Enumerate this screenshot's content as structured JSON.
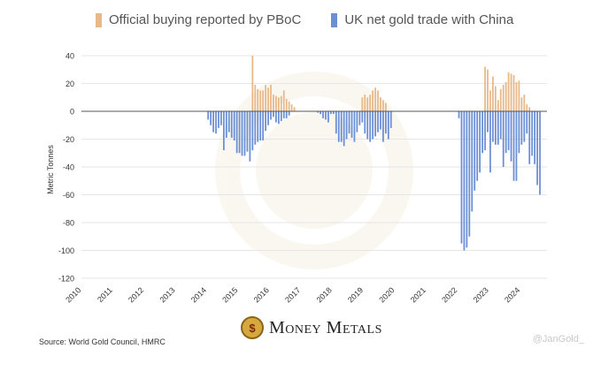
{
  "chart_data": {
    "type": "bar",
    "ylabel": "Metric Tonnes",
    "ylim": [
      -120,
      40
    ],
    "yticks": [
      40,
      20,
      0,
      -20,
      -40,
      -60,
      -80,
      -100,
      -120
    ],
    "xlim": [
      2010,
      2024.85
    ],
    "xticks": [
      "2010",
      "2011",
      "2012",
      "2013",
      "2014",
      "2015",
      "2016",
      "2017",
      "2018",
      "2019",
      "2020",
      "2021",
      "2022",
      "2023",
      "2024"
    ],
    "grid": true,
    "legend_position": "top",
    "series": [
      {
        "name": "Official buying reported by PBoC",
        "color": "#e8b888",
        "x": [
          "2015-06",
          "2015-07",
          "2015-08",
          "2015-09",
          "2015-10",
          "2015-11",
          "2015-12",
          "2016-01",
          "2016-02",
          "2016-03",
          "2016-04",
          "2016-05",
          "2016-06",
          "2016-07",
          "2016-08",
          "2016-09",
          "2016-10",
          "2018-12",
          "2019-01",
          "2019-02",
          "2019-03",
          "2019-04",
          "2019-05",
          "2019-06",
          "2019-07",
          "2019-08",
          "2019-09",
          "2022-11",
          "2022-12",
          "2023-01",
          "2023-02",
          "2023-03",
          "2023-04",
          "2023-05",
          "2023-06",
          "2023-07",
          "2023-08",
          "2023-09",
          "2023-10",
          "2023-11",
          "2023-12",
          "2024-01",
          "2024-02",
          "2024-03",
          "2024-04"
        ],
        "values": [
          40,
          19,
          16,
          15,
          15,
          19,
          17,
          19,
          12,
          11,
          10,
          11,
          15,
          9,
          7,
          5,
          3,
          10,
          12,
          10,
          12,
          15,
          17,
          15,
          10,
          8,
          6,
          32,
          30,
          15,
          25,
          18,
          8,
          16,
          19,
          21,
          28,
          27,
          26,
          21,
          22,
          10,
          12,
          5,
          3
        ]
      },
      {
        "name": "UK net gold trade with China",
        "color": "#6b8fd4",
        "x": [
          "2014-01",
          "2014-02",
          "2014-03",
          "2014-04",
          "2014-05",
          "2014-06",
          "2014-07",
          "2014-08",
          "2014-09",
          "2014-10",
          "2014-11",
          "2014-12",
          "2015-01",
          "2015-02",
          "2015-03",
          "2015-04",
          "2015-05",
          "2015-06",
          "2015-07",
          "2015-08",
          "2015-09",
          "2015-10",
          "2015-11",
          "2015-12",
          "2016-01",
          "2016-02",
          "2016-03",
          "2016-04",
          "2016-05",
          "2016-06",
          "2016-07",
          "2016-08",
          "2017-07",
          "2017-08",
          "2017-09",
          "2017-10",
          "2017-11",
          "2017-12",
          "2018-01",
          "2018-02",
          "2018-03",
          "2018-04",
          "2018-05",
          "2018-06",
          "2018-07",
          "2018-08",
          "2018-09",
          "2018-10",
          "2018-11",
          "2018-12",
          "2019-01",
          "2019-02",
          "2019-03",
          "2019-04",
          "2019-05",
          "2019-06",
          "2019-07",
          "2019-08",
          "2019-09",
          "2019-10",
          "2019-11",
          "2022-01",
          "2022-02",
          "2022-03",
          "2022-04",
          "2022-05",
          "2022-06",
          "2022-07",
          "2022-08",
          "2022-09",
          "2022-10",
          "2022-11",
          "2022-12",
          "2023-01",
          "2023-02",
          "2023-03",
          "2023-04",
          "2023-05",
          "2023-06",
          "2023-07",
          "2023-08",
          "2023-09",
          "2023-10",
          "2023-11",
          "2023-12",
          "2024-01",
          "2024-02",
          "2024-03",
          "2024-04",
          "2024-05",
          "2024-06",
          "2024-07",
          "2024-08"
        ],
        "values": [
          -6,
          -10,
          -15,
          -16,
          -12,
          -10,
          -28,
          -19,
          -15,
          -19,
          -21,
          -30,
          -30,
          -32,
          -32,
          -29,
          -36,
          -28,
          -24,
          -22,
          -21,
          -21,
          -14,
          -10,
          -6,
          -4,
          -8,
          -9,
          -7,
          -5,
          -5,
          -3,
          -1,
          -2,
          -5,
          -6,
          -8,
          -2,
          -2,
          -16,
          -22,
          -22,
          -25,
          -20,
          -16,
          -19,
          -22,
          -15,
          -10,
          -8,
          -16,
          -20,
          -22,
          -20,
          -18,
          -15,
          -13,
          -22,
          -16,
          -20,
          -12,
          -5,
          -95,
          -100,
          -98,
          -90,
          -72,
          -57,
          -50,
          -44,
          -30,
          -28,
          -15,
          -44,
          -22,
          -24,
          -24,
          -20,
          -40,
          -30,
          -28,
          -36,
          -50,
          -50,
          -30,
          -24,
          -22,
          -16,
          -38,
          -32,
          -38,
          -53,
          -60
        ]
      }
    ]
  },
  "footer": {
    "source": "Source: World Gold Council, HMRC",
    "brand": "Money Metals",
    "handle": "@JanGold_"
  },
  "colors": {
    "grid": "#e6e6e6",
    "axis": "#555555",
    "text": "#444444"
  }
}
